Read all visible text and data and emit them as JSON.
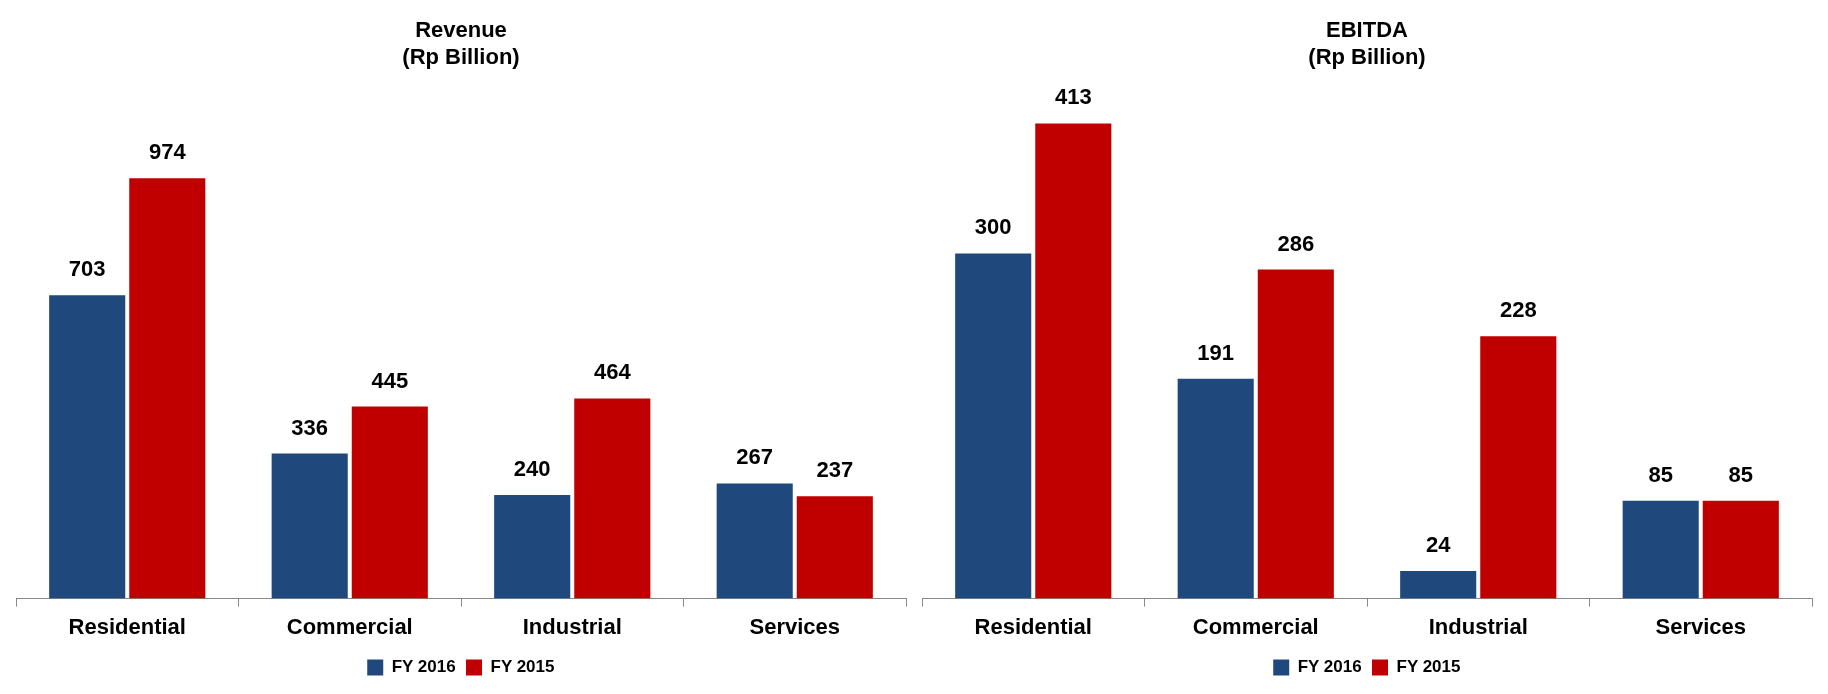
{
  "chart_data": [
    {
      "type": "bar",
      "title": "Revenue",
      "subtitle": "(Rp Billion)",
      "categories": [
        "Residential",
        "Commercial",
        "Industrial",
        "Services"
      ],
      "series": [
        {
          "name": "FY 2016",
          "color": "#1f497d",
          "values": [
            703,
            336,
            240,
            267
          ]
        },
        {
          "name": "FY 2015",
          "color": "#c00000",
          "values": [
            974,
            445,
            464,
            237
          ]
        }
      ],
      "data_labels": true,
      "legend": "bottom",
      "grid": false,
      "tick_labels": "x"
    },
    {
      "type": "bar",
      "title": "EBITDA",
      "subtitle": "(Rp Billion)",
      "categories": [
        "Residential",
        "Commercial",
        "Industrial",
        "Services"
      ],
      "series": [
        {
          "name": "FY 2016",
          "color": "#1f497d",
          "values": [
            300,
            191,
            24,
            85
          ]
        },
        {
          "name": "FY 2015",
          "color": "#c00000",
          "values": [
            413,
            286,
            228,
            85
          ]
        }
      ],
      "data_labels": true,
      "legend": "bottom",
      "grid": false,
      "tick_labels": "x"
    }
  ]
}
